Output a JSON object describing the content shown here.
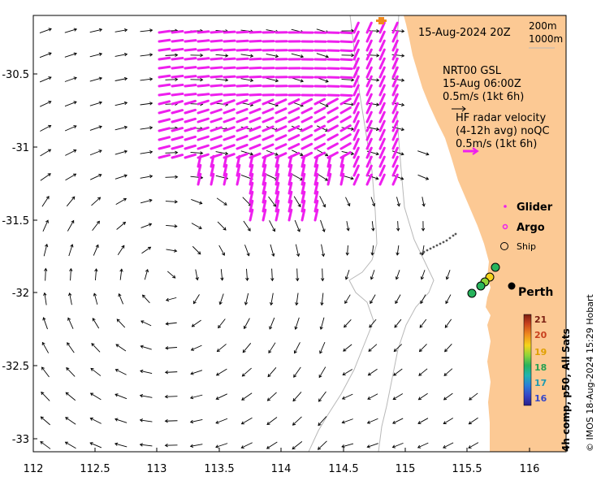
{
  "map": {
    "date_label": "15-Aug-2024 20Z",
    "contour_labels": [
      "200m",
      "1000m"
    ],
    "model": {
      "name": "NRT00 GSL",
      "time": "15-Aug 06:00Z",
      "scale": "0.5m/s (1kt 6h)"
    },
    "hf_radar": {
      "title": "HF radar velocity",
      "subtitle": "(4-12h avg) noQC",
      "scale": "0.5m/s (1kt 6h)"
    },
    "legend": {
      "glider": "Glider",
      "argo": "Argo",
      "ship": "Ship"
    },
    "city": "Perth",
    "colorbar": {
      "ticks": [
        "21",
        "20",
        "19",
        "18",
        "17",
        "16"
      ],
      "label": "4h comp, p50, All Sats",
      "colors": [
        "#7a1f12",
        "#c8401e",
        "#f08a1e",
        "#f5d41a",
        "#8fd43a",
        "#27b35c",
        "#1fb4b0",
        "#2a7fd8",
        "#3446c8",
        "#2a1f8a"
      ]
    },
    "credit": "© IMOS 18-Aug-2024 15:29 Hobart",
    "axes": {
      "x_ticks": [
        "112",
        "112.5",
        "113",
        "113.5",
        "114",
        "114.5",
        "115",
        "115.5",
        "116"
      ],
      "y_ticks": [
        "-30.5",
        "-31",
        "-31.5",
        "-32",
        "-32.5",
        "-33"
      ]
    },
    "colors": {
      "land": "#fcc994",
      "radar": "#ee1fee",
      "arrows": "#000000",
      "contour": "#b8b8b8"
    }
  }
}
